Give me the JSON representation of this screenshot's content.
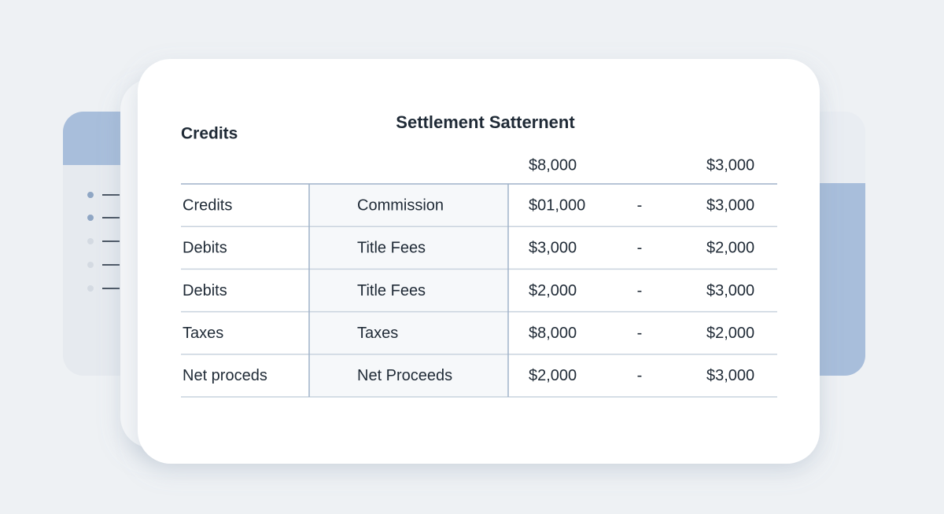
{
  "heading": "Credits",
  "title": "Settlement Satternent",
  "table": {
    "header": [
      "$8,000",
      "$3,000"
    ],
    "rows": [
      [
        "Credits",
        "Commission",
        "$01,000",
        "-",
        "$3,000"
      ],
      [
        "Debits",
        "Title Fees",
        "$3,000",
        "-",
        "$2,000"
      ],
      [
        "Debits",
        "Title Fees",
        "$2,000",
        "-",
        "$3,000"
      ],
      [
        "Taxes",
        "Taxes",
        "$8,000",
        "-",
        "$2,000"
      ],
      [
        "Net proceds",
        "Net Proceeds",
        "$2,000",
        "-",
        "$3,000"
      ]
    ]
  }
}
